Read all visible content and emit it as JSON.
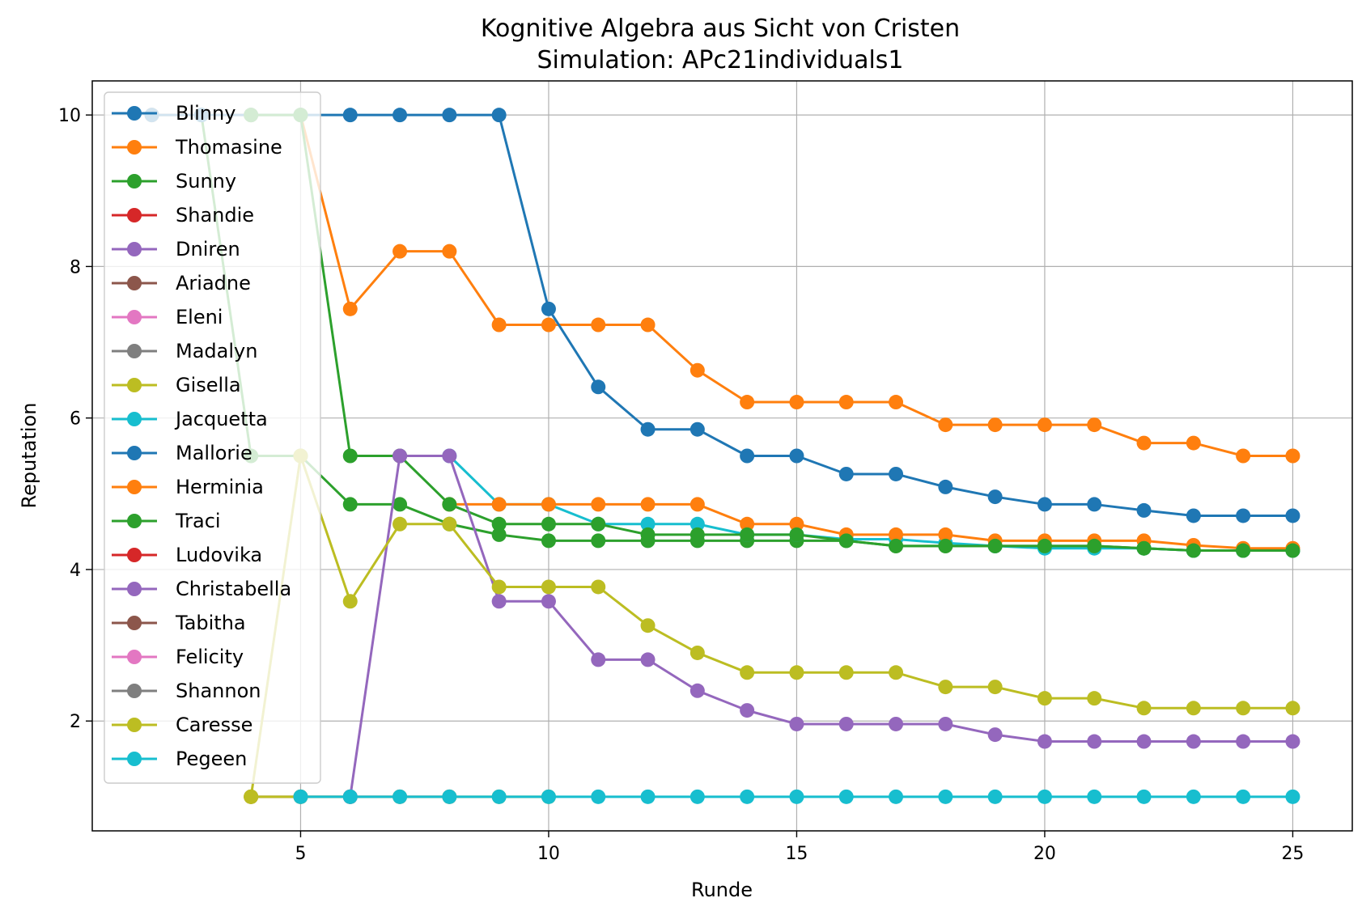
{
  "chart_data": {
    "type": "line",
    "title": "Kognitive Algebra aus Sicht von Cristen",
    "subtitle": "Simulation: APc21individuals1",
    "xlabel": "Runde",
    "ylabel": "Reputation",
    "xlim": [
      0.8,
      26.2
    ],
    "ylim": [
      0.55,
      10.45
    ],
    "xticks": [
      5,
      10,
      15,
      20,
      25
    ],
    "yticks": [
      2,
      4,
      6,
      8,
      10
    ],
    "grid": true,
    "legend_position": "upper-left",
    "series": [
      {
        "name": "Blinny",
        "color": "#1f77b4",
        "x": [],
        "y": []
      },
      {
        "name": "Thomasine",
        "color": "#ff7f0e",
        "x": [
          2,
          3,
          4,
          5,
          6,
          7,
          8,
          9,
          10,
          11,
          12,
          13,
          14,
          15,
          16,
          17,
          18,
          19,
          20,
          21,
          22,
          23,
          24,
          25
        ],
        "y": [
          10,
          10,
          10,
          10,
          7.44,
          8.2,
          8.2,
          7.23,
          7.23,
          7.23,
          7.23,
          6.63,
          6.21,
          6.21,
          6.21,
          6.21,
          5.91,
          5.91,
          5.91,
          5.91,
          5.67,
          5.67,
          5.5,
          5.5
        ]
      },
      {
        "name": "Sunny",
        "color": "#2ca02c",
        "x": [
          3,
          4,
          5,
          6,
          7,
          8,
          9,
          10,
          11,
          12,
          13,
          14,
          15,
          16,
          17,
          18,
          19,
          20,
          21,
          22,
          23,
          24,
          25
        ],
        "y": [
          10,
          5.5,
          5.5,
          4.86,
          4.86,
          4.6,
          4.46,
          4.38,
          4.38,
          4.38,
          4.38,
          4.38,
          4.38,
          4.38,
          4.31,
          4.31,
          4.31,
          4.31,
          4.31,
          4.28,
          4.25,
          4.25,
          4.25
        ]
      },
      {
        "name": "Shandie",
        "color": "#d62728",
        "x": [],
        "y": []
      },
      {
        "name": "Dniren",
        "color": "#9467bd",
        "x": [],
        "y": []
      },
      {
        "name": "Ariadne",
        "color": "#8c564b",
        "x": [
          4,
          5,
          6
        ],
        "y": [
          1,
          1,
          1
        ]
      },
      {
        "name": "Eleni",
        "color": "#e377c2",
        "x": [
          6,
          7,
          8
        ],
        "y": [
          1,
          1,
          1
        ]
      },
      {
        "name": "Madalyn",
        "color": "#7f7f7f",
        "x": [],
        "y": []
      },
      {
        "name": "Gisella",
        "color": "#bcbd22",
        "x": [
          4,
          5,
          6,
          7,
          8,
          9,
          10
        ],
        "y": [
          1,
          1,
          1,
          1,
          1,
          1,
          1
        ]
      },
      {
        "name": "Jacquetta",
        "color": "#17becf",
        "x": [
          8,
          9,
          10,
          11,
          12,
          13,
          14,
          15,
          16,
          17,
          18,
          19,
          20,
          21,
          22,
          23,
          24,
          25
        ],
        "y": [
          5.5,
          4.86,
          4.86,
          4.6,
          4.6,
          4.6,
          4.46,
          4.46,
          4.4,
          4.4,
          4.35,
          4.31,
          4.28,
          4.28,
          4.28,
          4.25,
          4.25,
          4.25
        ]
      },
      {
        "name": "Mallorie",
        "color": "#1f77b4",
        "x": [
          2,
          3,
          4,
          5,
          6,
          7,
          8,
          9,
          10,
          11,
          12,
          13,
          14,
          15,
          16,
          17,
          18,
          19,
          20,
          21,
          22,
          23,
          24,
          25
        ],
        "y": [
          10,
          10,
          10,
          10,
          10,
          10,
          10,
          10,
          7.44,
          6.41,
          5.85,
          5.85,
          5.5,
          5.5,
          5.26,
          5.26,
          5.09,
          4.96,
          4.86,
          4.86,
          4.78,
          4.71,
          4.71,
          4.71
        ]
      },
      {
        "name": "Herminia",
        "color": "#ff7f0e",
        "x": [
          8,
          9,
          10,
          11,
          12,
          13,
          14,
          15,
          16,
          17,
          18,
          19,
          20,
          21,
          22,
          23,
          24,
          25
        ],
        "y": [
          4.86,
          4.86,
          4.86,
          4.86,
          4.86,
          4.86,
          4.6,
          4.6,
          4.46,
          4.46,
          4.46,
          4.38,
          4.38,
          4.38,
          4.38,
          4.32,
          4.28,
          4.28
        ]
      },
      {
        "name": "Traci",
        "color": "#2ca02c",
        "x": [
          4,
          5,
          6,
          7,
          8,
          9,
          10,
          11,
          12,
          13,
          14,
          15,
          16,
          17,
          18,
          19,
          20,
          21,
          22,
          23,
          24,
          25
        ],
        "y": [
          10,
          10,
          5.5,
          5.5,
          4.86,
          4.6,
          4.6,
          4.6,
          4.46,
          4.46,
          4.46,
          4.46,
          4.38,
          4.31,
          4.31,
          4.31,
          4.31,
          4.31,
          4.28,
          4.25,
          4.25,
          4.25
        ]
      },
      {
        "name": "Ludovika",
        "color": "#d62728",
        "x": [],
        "y": []
      },
      {
        "name": "Christabella",
        "color": "#9467bd",
        "x": [
          6,
          7,
          8,
          9,
          10,
          11,
          12,
          13,
          14,
          15,
          16,
          17,
          18,
          19,
          20,
          21,
          22,
          23,
          24,
          25
        ],
        "y": [
          1,
          5.5,
          5.5,
          3.58,
          3.58,
          2.81,
          2.81,
          2.4,
          2.14,
          1.96,
          1.96,
          1.96,
          1.96,
          1.82,
          1.73,
          1.73,
          1.73,
          1.73,
          1.73,
          1.73
        ]
      },
      {
        "name": "Tabitha",
        "color": "#8c564b",
        "x": [],
        "y": []
      },
      {
        "name": "Felicity",
        "color": "#e377c2",
        "x": [],
        "y": []
      },
      {
        "name": "Shannon",
        "color": "#7f7f7f",
        "x": [],
        "y": []
      },
      {
        "name": "Caresse",
        "color": "#bcbd22",
        "x": [
          4,
          5,
          6,
          7,
          8,
          9,
          10,
          11,
          12,
          13,
          14,
          15,
          16,
          17,
          18,
          19,
          20,
          21,
          22,
          23,
          24,
          25
        ],
        "y": [
          1,
          5.5,
          3.58,
          4.6,
          4.6,
          3.77,
          3.77,
          3.77,
          3.26,
          2.9,
          2.64,
          2.64,
          2.64,
          2.64,
          2.45,
          2.45,
          2.3,
          2.3,
          2.17,
          2.17,
          2.17,
          2.17
        ]
      },
      {
        "name": "Pegeen",
        "color": "#17becf",
        "x": [
          5,
          6,
          7,
          8,
          9,
          10,
          11,
          12,
          13,
          14,
          15,
          16,
          17,
          18,
          19,
          20,
          21,
          22,
          23,
          24,
          25
        ],
        "y": [
          1,
          1,
          1,
          1,
          1,
          1,
          1,
          1,
          1,
          1,
          1,
          1,
          1,
          1,
          1,
          1,
          1,
          1,
          1,
          1,
          1
        ]
      }
    ]
  }
}
